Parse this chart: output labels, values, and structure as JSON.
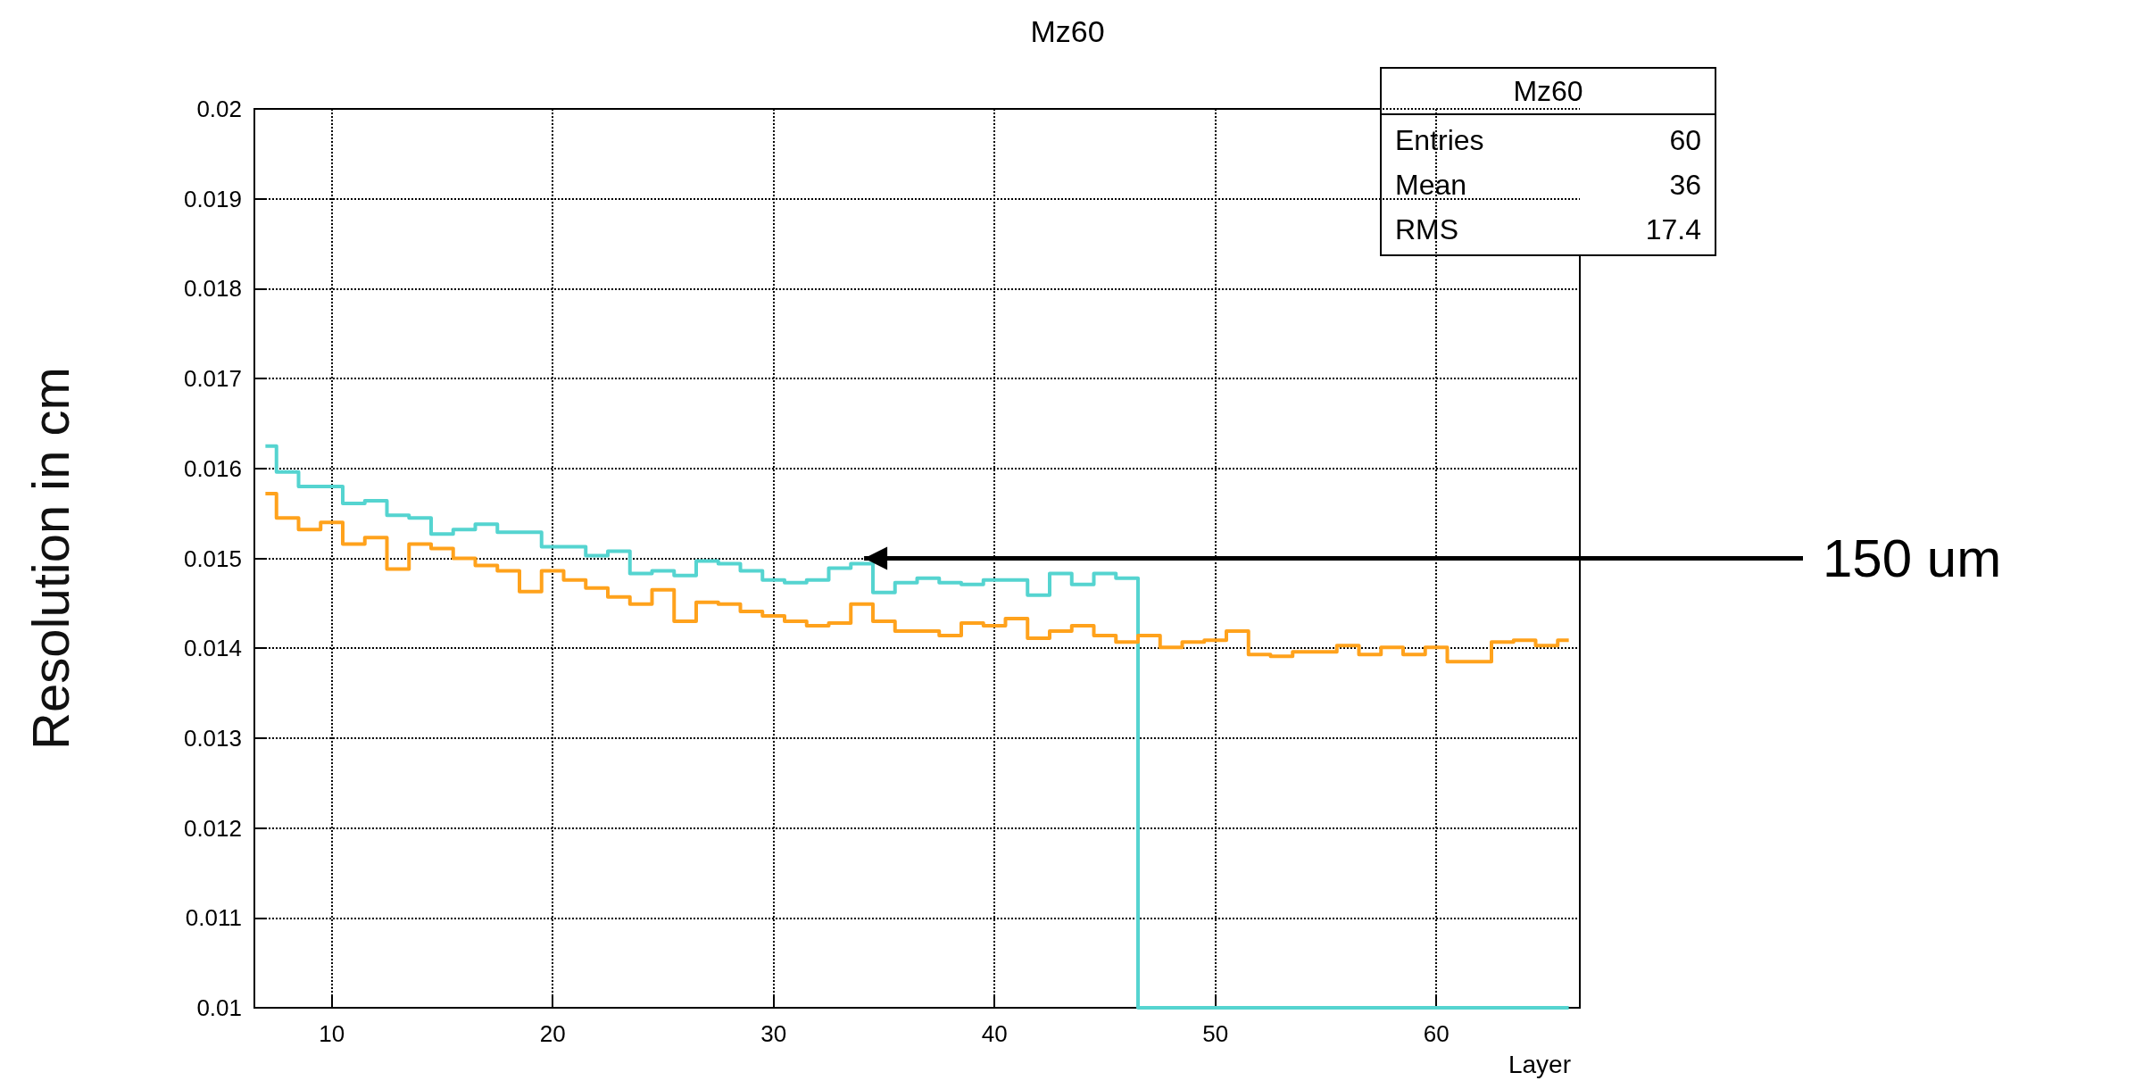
{
  "chart_data": {
    "type": "step",
    "title": "Mz60",
    "xlabel": "Layer",
    "ylabel": "Resolution in cm",
    "xlim": [
      6.5,
      66.5
    ],
    "xticks": [
      10,
      20,
      30,
      40,
      50,
      60
    ],
    "ylim": [
      0.01,
      0.02
    ],
    "yticks": [
      0.01,
      0.011,
      0.012,
      0.013,
      0.014,
      0.015,
      0.016,
      0.017,
      0.018,
      0.019,
      0.02
    ],
    "grid": true,
    "series": [
      {
        "color": "#55d4d0",
        "x": [
          7,
          8,
          9,
          10,
          11,
          12,
          13,
          14,
          15,
          16,
          17,
          18,
          19,
          20,
          21,
          22,
          23,
          24,
          25,
          26,
          27,
          28,
          29,
          30,
          31,
          32,
          33,
          34,
          35,
          36,
          37,
          38,
          39,
          40,
          41,
          42,
          43,
          44,
          45,
          46,
          47,
          48,
          49,
          50,
          51,
          52,
          53,
          54,
          55,
          56,
          57,
          58,
          59,
          60,
          61,
          62,
          63,
          64,
          65,
          66
        ],
        "values": [
          0.01625,
          0.01596,
          0.0158,
          0.0158,
          0.01561,
          0.01564,
          0.01548,
          0.01545,
          0.01527,
          0.01532,
          0.01538,
          0.01529,
          0.01529,
          0.01513,
          0.01513,
          0.01503,
          0.01508,
          0.01483,
          0.01486,
          0.01481,
          0.01497,
          0.01494,
          0.01486,
          0.01476,
          0.01473,
          0.01476,
          0.01489,
          0.01494,
          0.01462,
          0.01473,
          0.01478,
          0.01473,
          0.01471,
          0.01476,
          0.01476,
          0.01459,
          0.01483,
          0.01471,
          0.01483,
          0.01478,
          0.01,
          0.01,
          0.01,
          0.01,
          0.01,
          0.01,
          0.01,
          0.01,
          0.01,
          0.01,
          0.01,
          0.01,
          0.01,
          0.01,
          0.01,
          0.01,
          0.01,
          0.01,
          0.01,
          0.01
        ]
      },
      {
        "color": "#ffa21c",
        "x": [
          7,
          8,
          9,
          10,
          11,
          12,
          13,
          14,
          15,
          16,
          17,
          18,
          19,
          20,
          21,
          22,
          23,
          24,
          25,
          26,
          27,
          28,
          29,
          30,
          31,
          32,
          33,
          34,
          35,
          36,
          37,
          38,
          39,
          40,
          41,
          42,
          43,
          44,
          45,
          46,
          47,
          48,
          49,
          50,
          51,
          52,
          53,
          54,
          55,
          56,
          57,
          58,
          59,
          60,
          61,
          62,
          63,
          64,
          65,
          66
        ],
        "values": [
          0.01572,
          0.01545,
          0.01532,
          0.0154,
          0.01516,
          0.01523,
          0.01488,
          0.01516,
          0.01511,
          0.015,
          0.01492,
          0.01486,
          0.01463,
          0.01486,
          0.01476,
          0.01467,
          0.01457,
          0.01449,
          0.01465,
          0.0143,
          0.01451,
          0.01449,
          0.01441,
          0.01436,
          0.0143,
          0.01425,
          0.01428,
          0.01449,
          0.0143,
          0.01419,
          0.01419,
          0.01414,
          0.01428,
          0.01425,
          0.01433,
          0.01411,
          0.01419,
          0.01425,
          0.01414,
          0.01407,
          0.01414,
          0.01401,
          0.01407,
          0.01409,
          0.01419,
          0.01393,
          0.01391,
          0.01396,
          0.01396,
          0.01403,
          0.01393,
          0.01401,
          0.01393,
          0.01401,
          0.01385,
          0.01385,
          0.01407,
          0.01409,
          0.01403,
          0.01409
        ]
      }
    ],
    "annotations": [
      {
        "text": "150 um",
        "x": 34.1,
        "y": 0.015
      },
      "Mz60",
      "Entries 60",
      "Mean 36",
      "RMS 17.4"
    ]
  }
}
